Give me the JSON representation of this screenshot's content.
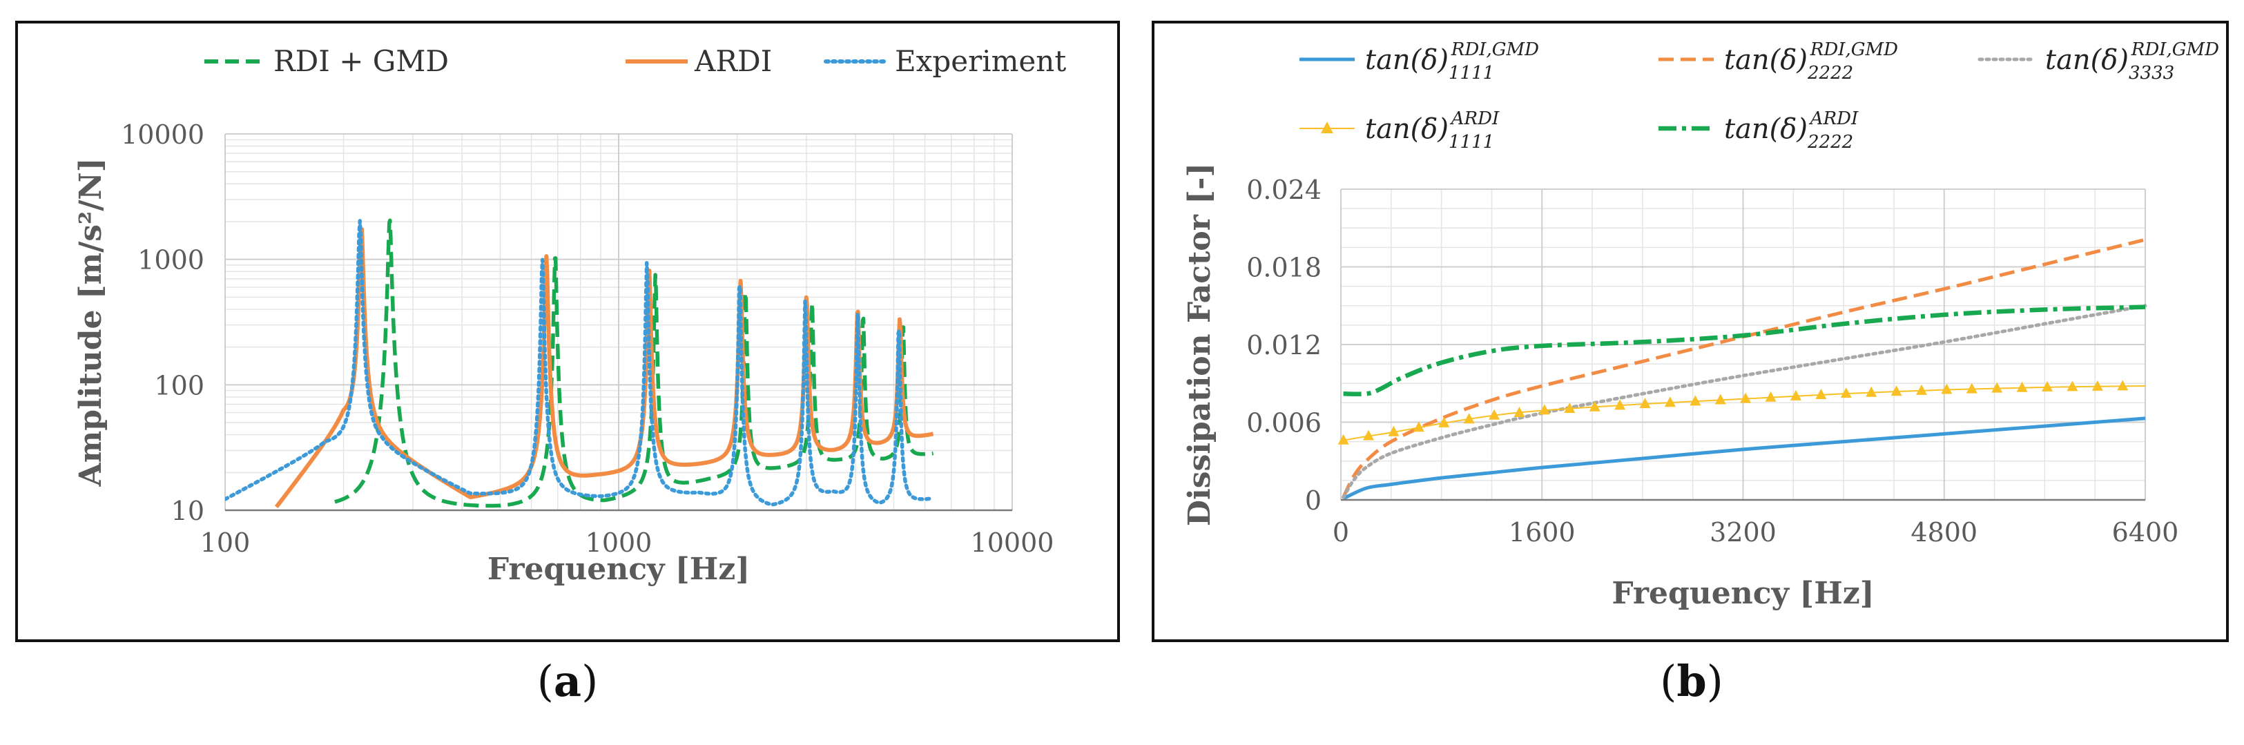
{
  "labels": {
    "a": "a",
    "b": "b"
  },
  "colors": {
    "blue": "#3C9AD8",
    "orange": "#F28C45",
    "green": "#18A84F",
    "gray": "#A8A8A8",
    "yellow": "#F8C024",
    "axis": "#7a7a7a",
    "grid": "#e4e4e4"
  },
  "chart_data": [
    {
      "type": "line",
      "scale": "log-log",
      "title": "",
      "xlabel": "Frequency [Hz]",
      "ylabel": "Amplitude [m/s²/N]",
      "xlim": [
        100,
        10000
      ],
      "ylim": [
        10,
        10000
      ],
      "x_ticks": [
        100,
        1000,
        10000
      ],
      "x_tick_labels": [
        "100",
        "1000",
        "10000"
      ],
      "y_ticks": [
        10,
        100,
        1000,
        10000
      ],
      "y_tick_labels": [
        "10",
        "100",
        "1000",
        "10000"
      ],
      "legend_position": "top",
      "series": [
        {
          "name": "RDI + GMD",
          "style": "dashed",
          "color": "#18A84F",
          "baseline": 10,
          "peaks": [
            {
              "f": 262,
              "a": 2100,
              "w": 0.03
            },
            {
              "f": 690,
              "a": 1100,
              "w": 0.022
            },
            {
              "f": 1240,
              "a": 750,
              "w": 0.02
            },
            {
              "f": 2100,
              "a": 560,
              "w": 0.02
            },
            {
              "f": 3100,
              "a": 440,
              "w": 0.02
            },
            {
              "f": 4180,
              "a": 340,
              "w": 0.02
            },
            {
              "f": 5280,
              "a": 280,
              "w": 0.02
            }
          ],
          "valleys": [
            {
              "x": 510,
              "y": 10
            },
            {
              "x": 920,
              "y": 11
            },
            {
              "x": 1700,
              "y": 17
            },
            {
              "x": 2600,
              "y": 21
            },
            {
              "x": 3650,
              "y": 24
            },
            {
              "x": 4700,
              "y": 24
            },
            {
              "x": 6300,
              "y": 28
            }
          ],
          "x_range": [
            190,
            6300
          ]
        },
        {
          "name": "ARDI",
          "style": "solid",
          "color": "#F28C45",
          "peaks": [
            {
              "f": 222,
              "a": 1800,
              "w": 0.03
            },
            {
              "f": 655,
              "a": 1050,
              "w": 0.025
            },
            {
              "f": 1195,
              "a": 820,
              "w": 0.024
            },
            {
              "f": 2040,
              "a": 650,
              "w": 0.024
            },
            {
              "f": 3000,
              "a": 480,
              "w": 0.024
            },
            {
              "f": 4050,
              "a": 380,
              "w": 0.024
            },
            {
              "f": 5180,
              "a": 300,
              "w": 0.024
            }
          ],
          "valleys": [
            {
              "x": 135,
              "y": 10
            },
            {
              "x": 200,
              "y": 50
            },
            {
              "x": 420,
              "y": 12
            },
            {
              "x": 880,
              "y": 18
            },
            {
              "x": 1550,
              "y": 22
            },
            {
              "x": 2500,
              "y": 26
            },
            {
              "x": 3500,
              "y": 28
            },
            {
              "x": 4600,
              "y": 32
            },
            {
              "x": 6300,
              "y": 40
            }
          ],
          "x_range": [
            135,
            6300
          ]
        },
        {
          "name": "Experiment",
          "style": "dotted",
          "color": "#3C9AD8",
          "peaks": [
            {
              "f": 220,
              "a": 2000,
              "w": 0.028
            },
            {
              "f": 640,
              "a": 1000,
              "w": 0.022
            },
            {
              "f": 1180,
              "a": 950,
              "w": 0.02
            },
            {
              "f": 2030,
              "a": 700,
              "w": 0.018
            },
            {
              "f": 2980,
              "a": 470,
              "w": 0.018
            },
            {
              "f": 4050,
              "a": 360,
              "w": 0.018
            },
            {
              "f": 5150,
              "a": 300,
              "w": 0.018
            }
          ],
          "valleys": [
            {
              "x": 100,
              "y": 12
            },
            {
              "x": 180,
              "y": 32
            },
            {
              "x": 250,
              "y": 30
            },
            {
              "x": 420,
              "y": 13
            },
            {
              "x": 900,
              "y": 12
            },
            {
              "x": 1600,
              "y": 13
            },
            {
              "x": 2450,
              "y": 10
            },
            {
              "x": 3500,
              "y": 13
            },
            {
              "x": 4600,
              "y": 10
            },
            {
              "x": 6200,
              "y": 12
            }
          ],
          "x_range": [
            100,
            6200
          ]
        }
      ]
    },
    {
      "type": "line",
      "scale": "linear",
      "title": "",
      "xlabel": "Frequency [Hz]",
      "ylabel": "Dissipation Factor [-]",
      "xlim": [
        0,
        6400
      ],
      "ylim": [
        0,
        0.024
      ],
      "x_ticks": [
        0,
        1600,
        3200,
        4800,
        6400
      ],
      "x_tick_labels": [
        "0",
        "1600",
        "3200",
        "4800",
        "6400"
      ],
      "y_ticks": [
        0,
        0.006,
        0.012,
        0.018,
        0.024
      ],
      "y_tick_labels": [
        "0",
        "0.006",
        "0.012",
        "0.018",
        "0.024"
      ],
      "legend_position": "top",
      "series": [
        {
          "name": "tan(δ)",
          "sub": "1111",
          "sup": "RDI,GMD",
          "style": "solid",
          "color": "#3C9AD8",
          "x": [
            20,
            200,
            400,
            800,
            1200,
            1600,
            2400,
            3200,
            4000,
            4800,
            5600,
            6400
          ],
          "y": [
            0.0001,
            0.0009,
            0.0012,
            0.0017,
            0.0021,
            0.0025,
            0.0032,
            0.0039,
            0.0045,
            0.0051,
            0.0057,
            0.0063
          ]
        },
        {
          "name": "tan(δ)",
          "sub": "2222",
          "sup": "RDI,GMD",
          "style": "dashed",
          "color": "#F28C45",
          "x": [
            20,
            100,
            200,
            400,
            800,
            1200,
            1600,
            2400,
            3200,
            4000,
            4800,
            5600,
            6400
          ],
          "y": [
            0.0002,
            0.0018,
            0.003,
            0.0045,
            0.0063,
            0.0077,
            0.0088,
            0.0107,
            0.0126,
            0.0145,
            0.0163,
            0.0182,
            0.0201
          ]
        },
        {
          "name": "tan(δ)",
          "sub": "3333",
          "sup": "RDI,GMD",
          "style": "dotted",
          "color": "#A8A8A8",
          "x": [
            20,
            100,
            200,
            400,
            800,
            1200,
            1600,
            2400,
            3200,
            4000,
            4800,
            5600,
            6400
          ],
          "y": [
            0.0002,
            0.0015,
            0.0025,
            0.0036,
            0.0048,
            0.0058,
            0.0067,
            0.0082,
            0.0096,
            0.0109,
            0.0122,
            0.0136,
            0.015
          ]
        },
        {
          "name": "tan(δ)",
          "sub": "1111",
          "sup": "ARDI",
          "style": "triangles",
          "color": "#F8C024",
          "x": [
            20,
            200,
            400,
            800,
            1200,
            1600,
            2400,
            3200,
            4000,
            4800,
            5600,
            6400
          ],
          "y": [
            0.0046,
            0.0049,
            0.0052,
            0.0059,
            0.0065,
            0.0069,
            0.0074,
            0.0078,
            0.0082,
            0.0085,
            0.0087,
            0.0088
          ]
        },
        {
          "name": "tan(δ)",
          "sub": "2222",
          "sup": "ARDI",
          "style": "dashdot",
          "color": "#18A84F",
          "x": [
            20,
            200,
            300,
            500,
            800,
            1200,
            1600,
            2400,
            3200,
            4000,
            4800,
            5600,
            6400
          ],
          "y": [
            0.0082,
            0.0082,
            0.0085,
            0.0095,
            0.0106,
            0.0115,
            0.0119,
            0.0122,
            0.0127,
            0.0136,
            0.0143,
            0.0147,
            0.0149
          ]
        }
      ]
    }
  ]
}
